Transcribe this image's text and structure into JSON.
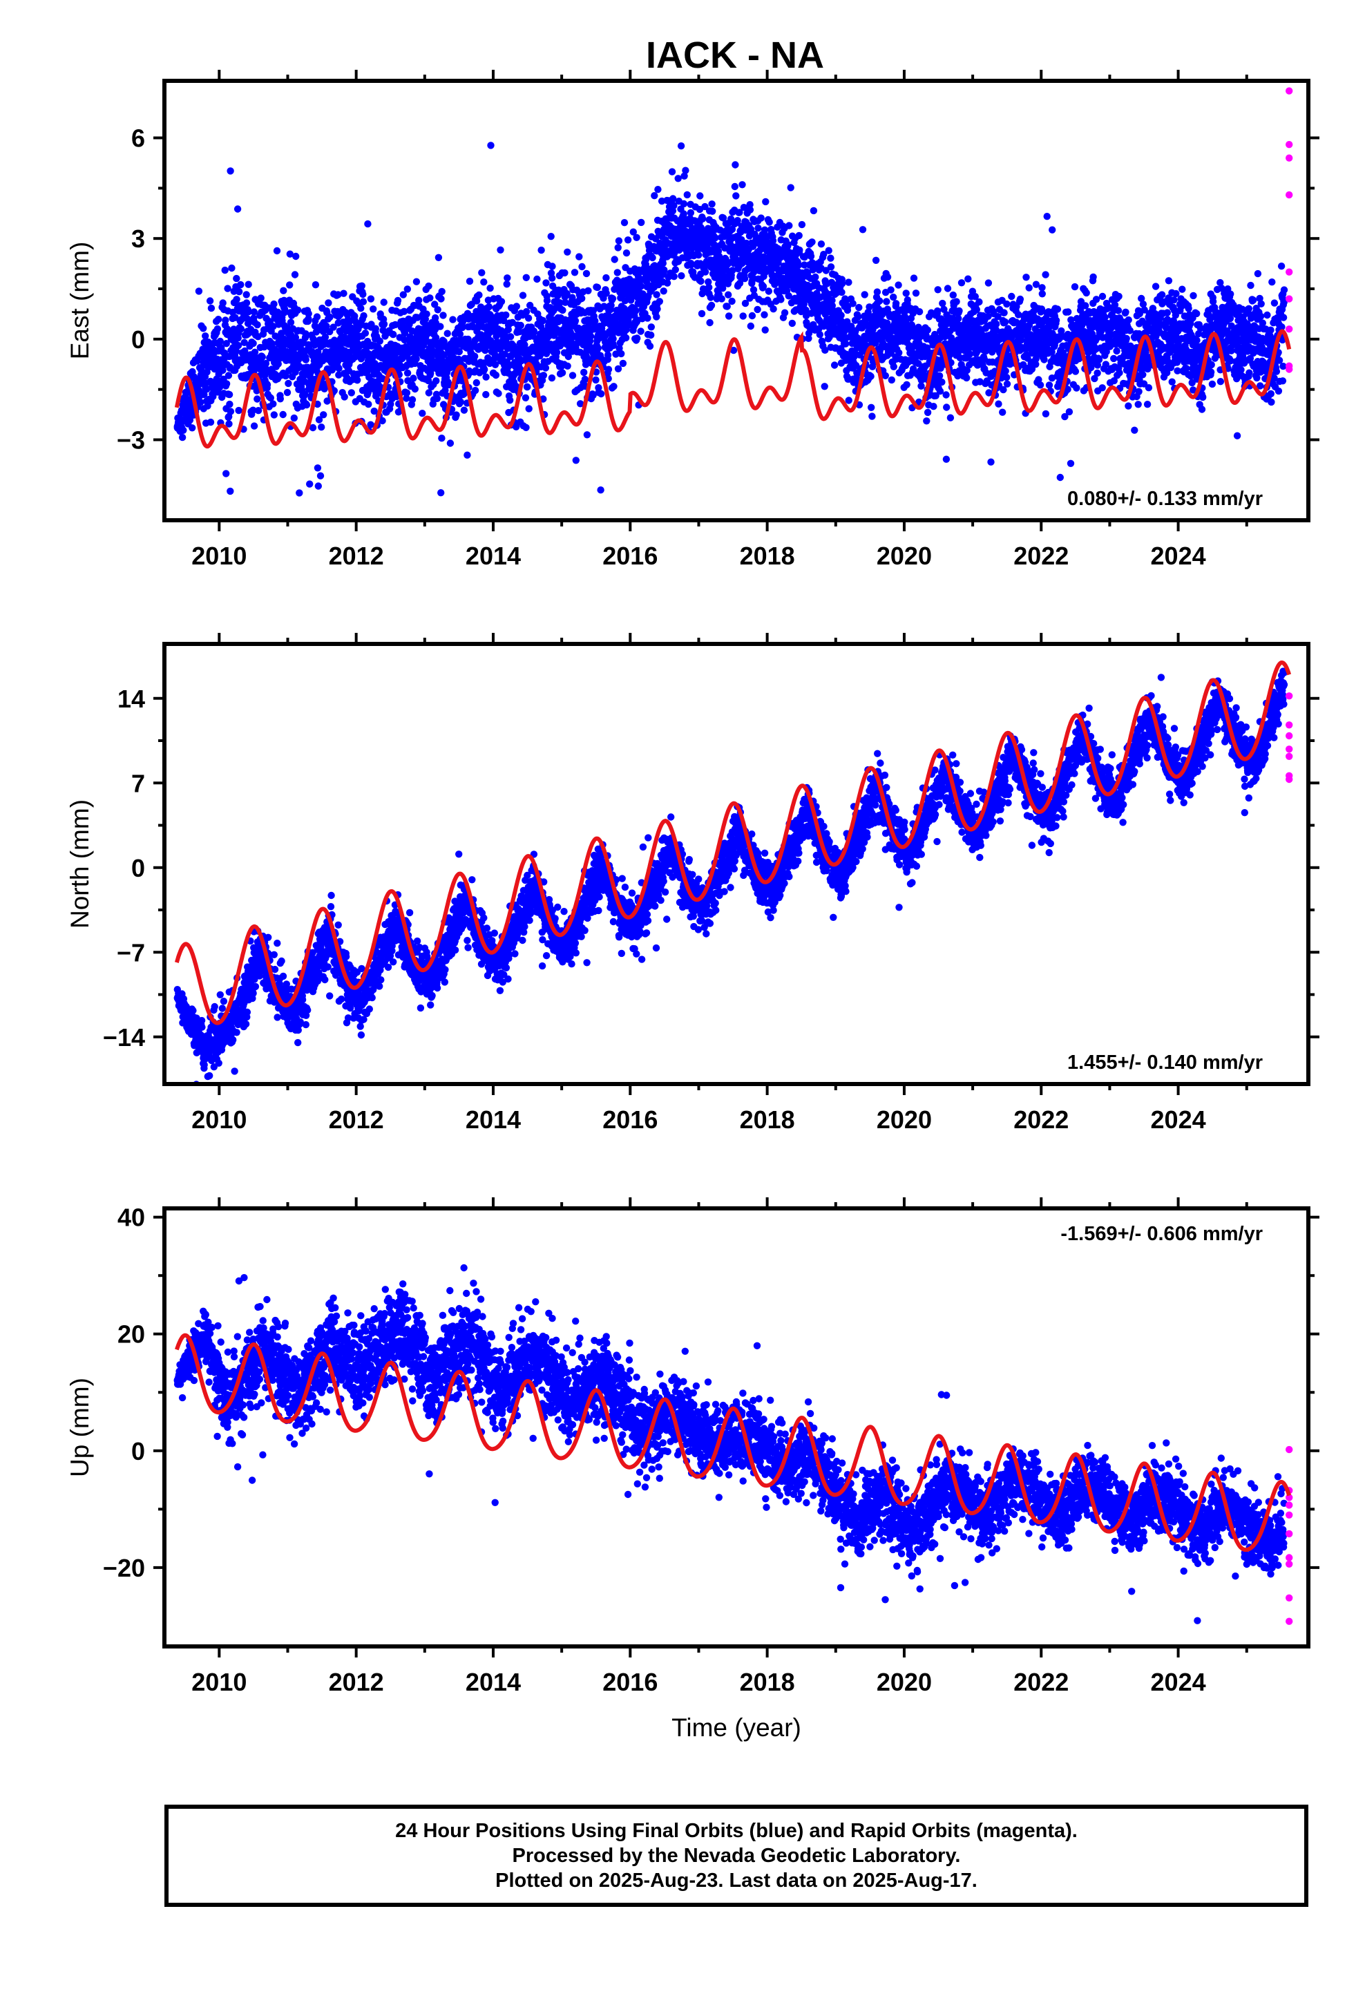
{
  "title": "IACK - NA",
  "footer": {
    "lines": [
      "24 Hour Positions Using Final Orbits (blue) and Rapid Orbits (magenta).",
      "Processed by the Nevada Geodetic Laboratory.",
      "Plotted on 2025-Aug-23. Last data on 2025-Aug-17."
    ]
  },
  "colors": {
    "final": "#0000ff",
    "rapid": "#ff00ff",
    "model": "#e8141a",
    "axes": "#000000"
  },
  "chart_data": [
    {
      "type": "scatter",
      "xlabel": "",
      "ylabel": "East (mm)",
      "xlim": [
        2009.2,
        2025.9
      ],
      "ylim": [
        -5.4,
        7.7
      ],
      "xticks": [
        "2010",
        "2012",
        "2014",
        "2016",
        "2018",
        "2020",
        "2022",
        "2024"
      ],
      "yticks": [
        "-3",
        "0",
        "3",
        "6"
      ],
      "annotation": "0.080+/- 0.133 mm/yr",
      "annotation_position": "bottom-right",
      "series": [
        {
          "kind": "scatter-final",
          "x": [
            2009.39,
            2009.8,
            2010.1,
            2010.3,
            2010.6,
            2010.85,
            2011.1,
            2011.35,
            2011.6,
            2011.85,
            2012.1,
            2012.35,
            2012.6,
            2012.85,
            2013.1,
            2013.35,
            2013.6,
            2013.85,
            2014.1,
            2014.35,
            2014.6,
            2014.85,
            2015.1,
            2015.35,
            2015.6,
            2015.85,
            2016.1,
            2016.35,
            2016.6,
            2016.85,
            2017.1,
            2017.35,
            2017.6,
            2017.85,
            2018.1,
            2018.35,
            2018.6,
            2018.85,
            2019.1,
            2019.35,
            2019.6,
            2019.85,
            2020.1,
            2020.35,
            2020.6,
            2020.85,
            2021.1,
            2021.35,
            2021.6,
            2021.85,
            2022.1,
            2022.35,
            2022.6,
            2022.85,
            2023.1,
            2023.35,
            2023.6,
            2023.85,
            2024.1,
            2024.35,
            2024.6,
            2024.85,
            2025.1,
            2025.35,
            2025.55
          ],
          "y": [
            -2.6,
            -0.8,
            -0.6,
            0.1,
            -0.9,
            -0.3,
            -0.2,
            -0.8,
            -0.7,
            -0.1,
            -0.1,
            -0.9,
            -0.4,
            -0.1,
            -0.2,
            -0.8,
            -0.5,
            0.1,
            0.0,
            -0.6,
            -0.4,
            0.4,
            0.5,
            -0.3,
            0.1,
            0.8,
            1.3,
            2.0,
            3.2,
            3.0,
            2.7,
            2.3,
            2.6,
            2.4,
            2.3,
            2.0,
            1.6,
            1.0,
            0.4,
            -0.6,
            0.1,
            0.2,
            0.0,
            -0.8,
            -0.1,
            0.1,
            0.1,
            -0.6,
            0.1,
            0.0,
            0.1,
            -0.8,
            0.2,
            0.0,
            0.1,
            -0.8,
            0.1,
            0.2,
            0.0,
            -0.7,
            0.3,
            0.0,
            0.0,
            -0.6,
            0.4
          ],
          "spread": [
            0.3,
            1.4,
            1.8,
            1.8,
            1.8,
            1.8,
            1.8,
            1.8,
            1.8,
            1.8,
            1.6,
            1.6,
            1.6,
            1.6,
            1.6,
            1.6,
            1.6,
            1.6,
            1.6,
            1.6,
            1.6,
            1.6,
            1.6,
            1.6,
            1.6,
            1.6,
            1.6,
            1.6,
            1.4,
            1.4,
            1.4,
            1.4,
            1.4,
            1.4,
            1.4,
            1.4,
            1.4,
            1.6,
            1.4,
            1.4,
            1.4,
            1.4,
            1.4,
            1.4,
            1.4,
            1.4,
            1.3,
            1.3,
            1.3,
            1.3,
            1.3,
            1.3,
            1.3,
            1.3,
            1.3,
            1.3,
            1.3,
            1.3,
            1.3,
            1.3,
            1.3,
            1.3,
            1.3,
            1.3,
            1.3
          ]
        },
        {
          "kind": "scatter-rapid",
          "x": [
            2025.62,
            2025.62,
            2025.62,
            2025.62,
            2025.62,
            2025.62,
            2025.62,
            2025.62,
            2025.62
          ],
          "y": [
            7.4,
            5.8,
            5.4,
            4.3,
            2.0,
            1.2,
            0.3,
            -0.8,
            -0.9
          ]
        },
        {
          "kind": "model",
          "x": [
            2009.38,
            2025.62
          ],
          "intercept_at_2009_38": -2.0,
          "trend": 0.08,
          "annual_amp": 0.75,
          "semiannual_amp": 0.55,
          "segments": [
            {
              "x0": 2009.38,
              "x1": 2016.0,
              "offset": -0.45
            },
            {
              "x0": 2016.0,
              "x1": 2018.5,
              "offset": 0.05
            },
            {
              "x0": 2018.5,
              "x1": 2025.62,
              "offset": -0.35
            }
          ]
        }
      ]
    },
    {
      "type": "scatter",
      "xlabel": "",
      "ylabel": "North (mm)",
      "xlim": [
        2009.2,
        2025.9
      ],
      "ylim": [
        -17.9,
        18.5
      ],
      "xticks": [
        "2010",
        "2012",
        "2014",
        "2016",
        "2018",
        "2020",
        "2022",
        "2024"
      ],
      "yticks": [
        "-14",
        "-7",
        "0",
        "7",
        "14"
      ],
      "annotation": "1.455+/- 0.140 mm/yr",
      "annotation_position": "bottom-right",
      "series": [
        {
          "kind": "scatter-final",
          "x": [
            2009.39,
            2009.8,
            2010.1,
            2010.3,
            2010.6,
            2010.85,
            2011.1,
            2011.35,
            2011.6,
            2011.85,
            2012.1,
            2012.35,
            2012.6,
            2012.85,
            2013.1,
            2013.35,
            2013.6,
            2013.85,
            2014.1,
            2014.35,
            2014.6,
            2014.85,
            2015.1,
            2015.35,
            2015.6,
            2015.85,
            2016.1,
            2016.35,
            2016.6,
            2016.85,
            2017.1,
            2017.35,
            2017.6,
            2017.85,
            2018.1,
            2018.35,
            2018.6,
            2018.85,
            2019.1,
            2019.35,
            2019.6,
            2019.85,
            2020.1,
            2020.35,
            2020.6,
            2020.85,
            2021.1,
            2021.35,
            2021.6,
            2021.85,
            2022.1,
            2022.35,
            2022.6,
            2022.85,
            2023.1,
            2023.35,
            2023.6,
            2023.85,
            2024.1,
            2024.35,
            2024.6,
            2024.85,
            2025.1,
            2025.35,
            2025.55
          ],
          "y": [
            -10.8,
            -15.0,
            -13.5,
            -11.5,
            -7.0,
            -10.5,
            -12.0,
            -8.5,
            -6.0,
            -9.5,
            -11.0,
            -7.5,
            -4.5,
            -8.0,
            -9.5,
            -6.0,
            -3.0,
            -6.5,
            -8.0,
            -4.5,
            -1.5,
            -5.0,
            -6.5,
            -3.0,
            0.0,
            -3.5,
            -5.0,
            -1.5,
            1.5,
            -2.0,
            -3.5,
            0.0,
            3.0,
            -0.5,
            -2.0,
            1.5,
            4.5,
            1.0,
            -0.5,
            3.0,
            6.5,
            3.0,
            1.0,
            4.5,
            8.0,
            4.5,
            2.5,
            6.0,
            9.5,
            6.0,
            4.0,
            7.5,
            11.0,
            7.5,
            5.5,
            9.0,
            12.5,
            9.0,
            7.0,
            10.5,
            14.0,
            10.5,
            8.5,
            12.0,
            15.5
          ],
          "spread": [
            0.5,
            2.0,
            2.2,
            2.2,
            2.2,
            2.2,
            2.2,
            2.2,
            2.2,
            2.2,
            2.0,
            2.0,
            2.0,
            2.0,
            2.0,
            2.0,
            2.0,
            2.0,
            2.0,
            2.0,
            2.0,
            2.0,
            2.0,
            2.0,
            2.0,
            2.0,
            2.0,
            2.0,
            2.0,
            2.0,
            2.0,
            2.0,
            2.0,
            2.0,
            2.0,
            2.0,
            2.0,
            2.0,
            2.0,
            2.0,
            2.0,
            2.0,
            2.0,
            2.0,
            2.0,
            2.0,
            2.0,
            2.0,
            2.0,
            2.0,
            2.0,
            2.0,
            2.0,
            2.0,
            2.0,
            2.0,
            2.0,
            2.0,
            2.0,
            2.0,
            2.0,
            2.0,
            2.0,
            2.0,
            2.0
          ]
        },
        {
          "kind": "scatter-rapid",
          "x": [
            2025.62,
            2025.62,
            2025.62,
            2025.62,
            2025.62,
            2025.62,
            2025.62
          ],
          "y": [
            14.2,
            11.8,
            10.9,
            9.8,
            9.2,
            7.6,
            7.3
          ]
        },
        {
          "kind": "model",
          "x": [
            2009.38,
            2025.62
          ],
          "intercept_at_2009_38": -10.0,
          "trend": 1.455,
          "annual_amp": 3.6,
          "semiannual_amp": 0.3,
          "segments": [
            {
              "x0": 2009.38,
              "x1": 2025.62,
              "offset": -0.4
            }
          ]
        }
      ]
    },
    {
      "type": "scatter",
      "xlabel": "Time (year)",
      "ylabel": "Up (mm)",
      "xlim": [
        2009.2,
        2025.9
      ],
      "ylim": [
        -33.5,
        41.5
      ],
      "xticks": [
        "2010",
        "2012",
        "2014",
        "2016",
        "2018",
        "2020",
        "2022",
        "2024"
      ],
      "yticks": [
        "-20",
        "0",
        "20",
        "40"
      ],
      "annotation": "-1.569+/- 0.606 mm/yr",
      "annotation_position": "top-right",
      "series": [
        {
          "kind": "scatter-final",
          "x": [
            2009.39,
            2009.8,
            2010.1,
            2010.3,
            2010.6,
            2010.85,
            2011.1,
            2011.35,
            2011.6,
            2011.85,
            2012.1,
            2012.35,
            2012.6,
            2012.85,
            2013.1,
            2013.35,
            2013.6,
            2013.85,
            2014.1,
            2014.35,
            2014.6,
            2014.85,
            2015.1,
            2015.35,
            2015.6,
            2015.85,
            2016.1,
            2016.35,
            2016.6,
            2016.85,
            2017.1,
            2017.35,
            2017.6,
            2017.85,
            2018.1,
            2018.35,
            2018.6,
            2018.85,
            2019.1,
            2019.35,
            2019.6,
            2019.85,
            2020.1,
            2020.35,
            2020.6,
            2020.85,
            2021.1,
            2021.35,
            2021.6,
            2021.85,
            2022.1,
            2022.35,
            2022.6,
            2022.85,
            2023.1,
            2023.35,
            2023.6,
            2023.85,
            2024.1,
            2024.35,
            2024.6,
            2024.85,
            2025.1,
            2025.35,
            2025.55
          ],
          "y": [
            12.0,
            20.0,
            8.0,
            10.0,
            17.0,
            15.0,
            9.0,
            12.0,
            18.0,
            16.0,
            14.0,
            17.0,
            21.0,
            17.0,
            12.0,
            15.0,
            19.0,
            15.0,
            10.0,
            13.0,
            17.0,
            13.0,
            8.0,
            10.0,
            13.0,
            9.0,
            3.0,
            4.0,
            7.0,
            5.0,
            2.0,
            1.0,
            3.0,
            2.0,
            -2.0,
            -3.0,
            0.0,
            -4.0,
            -9.0,
            -12.0,
            -8.0,
            -10.0,
            -14.0,
            -11.0,
            -6.0,
            -7.0,
            -11.0,
            -10.0,
            -5.0,
            -6.0,
            -10.0,
            -11.0,
            -6.0,
            -6.0,
            -11.0,
            -12.0,
            -8.0,
            -8.0,
            -12.0,
            -14.0,
            -10.0,
            -10.0,
            -14.0,
            -16.0,
            -14.0
          ],
          "spread": [
            1.0,
            5.0,
            7.0,
            7.0,
            7.0,
            7.0,
            7.0,
            7.0,
            7.0,
            7.0,
            7.5,
            7.5,
            7.5,
            7.5,
            7.5,
            7.5,
            7.5,
            7.5,
            7.0,
            7.0,
            7.0,
            7.0,
            7.0,
            7.0,
            7.0,
            7.0,
            6.5,
            6.5,
            6.5,
            6.5,
            6.0,
            6.0,
            6.0,
            6.0,
            6.0,
            6.0,
            6.0,
            6.0,
            6.0,
            6.5,
            6.5,
            6.5,
            6.5,
            6.5,
            6.0,
            6.0,
            6.0,
            6.0,
            5.5,
            5.5,
            5.5,
            5.5,
            5.5,
            5.5,
            5.5,
            5.5,
            5.5,
            5.5,
            5.5,
            5.5,
            5.5,
            5.5,
            5.5,
            5.5,
            5.5
          ]
        },
        {
          "kind": "scatter-rapid",
          "x": [
            2025.62,
            2025.62,
            2025.62,
            2025.62,
            2025.62,
            2025.62,
            2025.62,
            2025.62,
            2025.62,
            2025.62
          ],
          "y": [
            0.2,
            -6.8,
            -8.0,
            -9.3,
            -11.0,
            -14.2,
            -18.3,
            -19.4,
            -25.2,
            -29.2
          ]
        },
        {
          "kind": "model",
          "x": [
            2009.38,
            2025.62
          ],
          "intercept_at_2009_38": 13.0,
          "trend": -1.569,
          "annual_amp": 6.2,
          "semiannual_amp": 0.8,
          "segments": [
            {
              "x0": 2009.38,
              "x1": 2025.62,
              "offset": 0.0
            }
          ]
        }
      ]
    }
  ]
}
